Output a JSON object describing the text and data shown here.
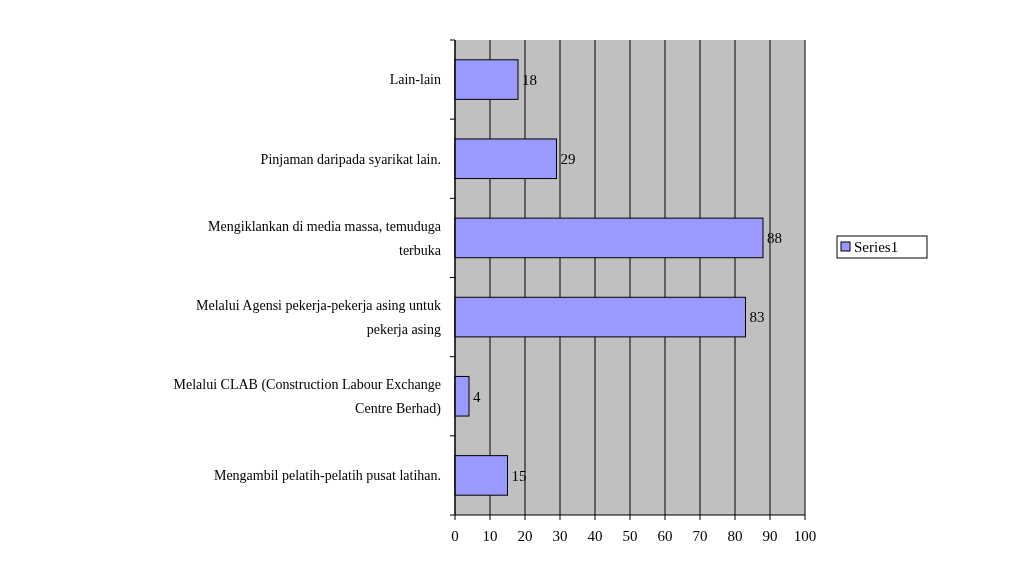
{
  "chart_data": {
    "type": "bar",
    "orientation": "horizontal",
    "categories": [
      "Lain-lain",
      "Pinjaman daripada syarikat lain.",
      "Mengiklankan di media massa, temuduga terbuka",
      "Melalui Agensi pekerja-pekerja asing untuk pekerja asing",
      "Melalui CLAB (Construction Labour Exchange Centre Berhad)",
      "Mengambil pelatih-pelatih pusat latihan."
    ],
    "series": [
      {
        "name": "Series1",
        "color": "#9999ff",
        "values": [
          18,
          29,
          88,
          83,
          4,
          15
        ]
      }
    ],
    "xlim": [
      0,
      100
    ],
    "xticks": [
      0,
      10,
      20,
      30,
      40,
      50,
      60,
      70,
      80,
      90,
      100
    ],
    "grid": "x",
    "legend": "right",
    "data_labels": true
  }
}
